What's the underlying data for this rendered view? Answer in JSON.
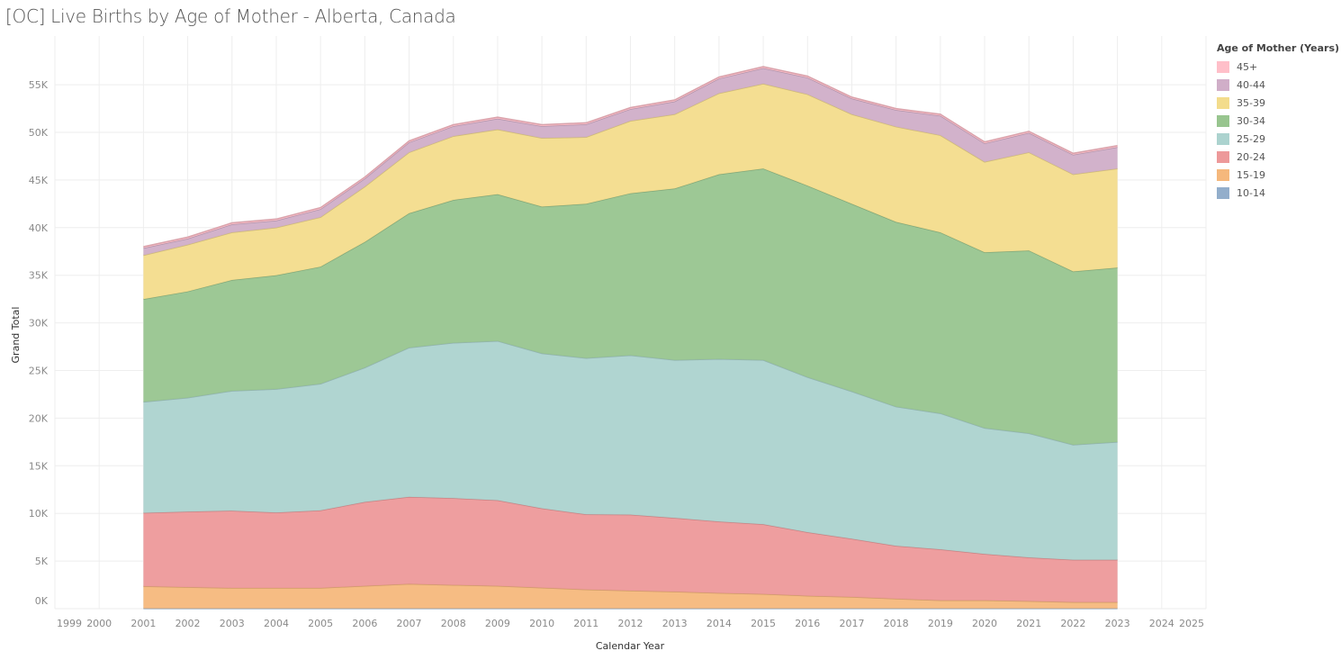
{
  "title": "[OC] Live Births by Age of Mother - Alberta, Canada",
  "legend": {
    "title": "Age of Mother (Years)"
  },
  "chart_data": {
    "type": "area",
    "stacked": true,
    "title": "[OC] Live Births by Age of Mother - Alberta, Canada",
    "xlabel": "Calendar Year",
    "ylabel": "Grand Total",
    "x_ticks": [
      "1999",
      "2000",
      "2001",
      "2002",
      "2003",
      "2004",
      "2005",
      "2006",
      "2007",
      "2008",
      "2009",
      "2010",
      "2011",
      "2012",
      "2013",
      "2014",
      "2015",
      "2016",
      "2017",
      "2018",
      "2019",
      "2020",
      "2021",
      "2022",
      "2023",
      "2024",
      "2025"
    ],
    "xlim": [
      1999,
      2025
    ],
    "y_ticks": [
      "0K",
      "5K",
      "10K",
      "15K",
      "20K",
      "25K",
      "30K",
      "35K",
      "40K",
      "45K",
      "50K",
      "55K"
    ],
    "ylim": [
      0,
      58500
    ],
    "grid": true,
    "legend_position": "right",
    "x": [
      2001,
      2002,
      2003,
      2004,
      2005,
      2006,
      2007,
      2008,
      2009,
      2010,
      2011,
      2012,
      2013,
      2014,
      2015,
      2016,
      2017,
      2018,
      2019,
      2020,
      2021,
      2022,
      2023
    ],
    "series": [
      {
        "name": "10-14",
        "color": "#93aecb",
        "values": [
          20,
          20,
          20,
          20,
          20,
          20,
          20,
          20,
          20,
          20,
          20,
          20,
          20,
          20,
          20,
          20,
          20,
          20,
          20,
          20,
          20,
          20,
          20
        ]
      },
      {
        "name": "15-19",
        "color": "#f5b87c",
        "values": [
          2330,
          2240,
          2150,
          2150,
          2150,
          2370,
          2580,
          2470,
          2370,
          2180,
          1980,
          1870,
          1770,
          1620,
          1520,
          1330,
          1210,
          1020,
          860,
          860,
          770,
          670,
          670
        ]
      },
      {
        "name": "20-24",
        "color": "#ed999a",
        "values": [
          7710,
          7930,
          8110,
          7920,
          8140,
          8810,
          9130,
          9110,
          8990,
          8330,
          7900,
          7980,
          7740,
          7510,
          7330,
          6670,
          6100,
          5560,
          5350,
          4870,
          4590,
          4430,
          4430
        ]
      },
      {
        "name": "25-29",
        "color": "#acd3cf",
        "values": [
          11640,
          11950,
          12580,
          12960,
          13290,
          14100,
          15670,
          16300,
          16720,
          16270,
          16400,
          16730,
          16570,
          17050,
          17230,
          16280,
          15470,
          14600,
          14270,
          13210,
          13020,
          12080,
          12380
        ]
      },
      {
        "name": "30-34",
        "color": "#98c58f",
        "values": [
          10800,
          11160,
          11640,
          11950,
          12300,
          13200,
          14100,
          15000,
          15400,
          15400,
          16200,
          17000,
          18000,
          19400,
          20100,
          20100,
          19700,
          19400,
          19000,
          18440,
          19200,
          18200,
          18300
        ]
      },
      {
        "name": "35-39",
        "color": "#f3dc8c",
        "values": [
          4600,
          4900,
          5000,
          5000,
          5200,
          5800,
          6400,
          6700,
          6800,
          7200,
          7000,
          7600,
          7800,
          8500,
          8900,
          9600,
          9400,
          10000,
          10200,
          9500,
          10300,
          10200,
          10400
        ]
      },
      {
        "name": "40-44",
        "color": "#d0aec8",
        "values": [
          750,
          650,
          850,
          750,
          850,
          850,
          1050,
          1050,
          1150,
          1250,
          1350,
          1250,
          1350,
          1550,
          1650,
          1750,
          1650,
          1750,
          2050,
          1950,
          2050,
          2050,
          2250
        ]
      },
      {
        "name": "45+",
        "color": "#ffbfc9",
        "values": [
          150,
          150,
          150,
          150,
          150,
          150,
          150,
          150,
          150,
          150,
          150,
          150,
          150,
          150,
          150,
          150,
          150,
          150,
          150,
          150,
          150,
          150,
          150
        ]
      }
    ]
  }
}
